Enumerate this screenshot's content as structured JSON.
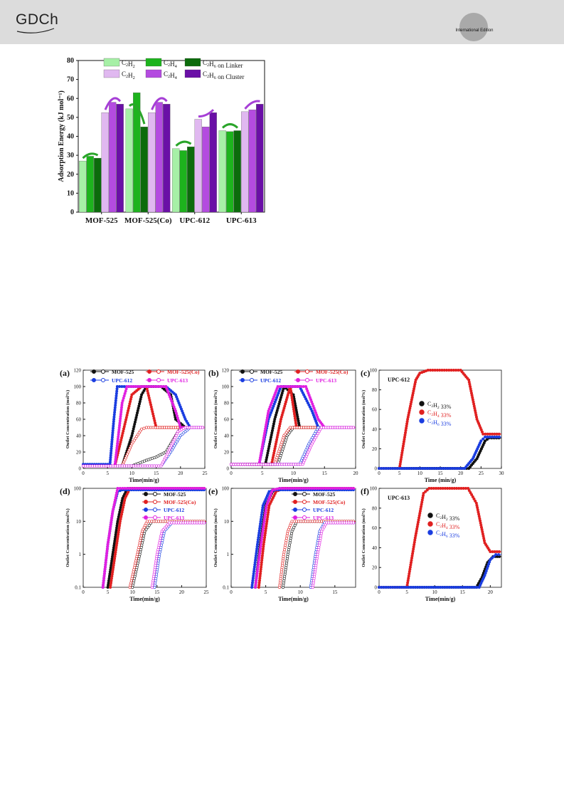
{
  "header": {
    "logo_text": "GDCh",
    "edition_text": "International Edition",
    "colors": {
      "band": "#dcdcdc",
      "badge": "#a9a9a9"
    }
  },
  "top_figure": {
    "ylabel": "Adsorption Energy (kJ mol⁻¹)",
    "chart_data": {
      "type": "bar",
      "categories": [
        "MOF-525",
        "MOF-525(Co)",
        "UPC-612",
        "UPC-613"
      ],
      "ylim": [
        0,
        80
      ],
      "yticks": [
        0,
        10,
        20,
        30,
        40,
        50,
        60,
        70,
        80
      ],
      "ylabel": "Adsorption Energy (kJ mol⁻¹)",
      "legend_position": "top",
      "series": [
        {
          "name": "C2H2",
          "color": "#a6f0a6",
          "values": [
            27,
            54.5,
            33.5,
            43
          ]
        },
        {
          "name": "C2H4",
          "color": "#1db31d",
          "values": [
            29.5,
            63,
            32.5,
            42.5
          ]
        },
        {
          "name": "C2H6 on Linker",
          "color": "#0c6b0c",
          "values": [
            28.5,
            45,
            34.5,
            43
          ]
        },
        {
          "name": "C2H2",
          "color": "#e0b8f0",
          "values": [
            52.5,
            52.5,
            49,
            53
          ]
        },
        {
          "name": "C2H4",
          "color": "#b44be0",
          "values": [
            58,
            58,
            45,
            54
          ]
        },
        {
          "name": "C2H6 on Cluster",
          "color": "#6a0fa6",
          "values": [
            57,
            57,
            52.5,
            57
          ]
        }
      ]
    }
  },
  "breakthrough": {
    "panel_labels": [
      "(a)",
      "(b)",
      "(c)",
      "(d)",
      "(e)",
      "(f)"
    ],
    "ylabel_lin": "Outlet Concentration (mol%)",
    "xlabel_a": "Time(min/g)",
    "xlabel_c": "Time (min/g)",
    "xlabel_f": "Time(min/g)",
    "legend_mof": [
      "MOF-525",
      "MOF-525(Co)",
      "UPC-612",
      "UPC-613"
    ],
    "legend_gas": [
      "C2H2 33%",
      "C2H4 33%",
      "C2H6 33%"
    ],
    "c_title": "UPC-612",
    "f_title": "UPC-613",
    "colors": {
      "MOF-525": "#111111",
      "MOF-525(Co)": "#e02020",
      "UPC-612": "#1a3de0",
      "UPC-613": "#e020e0"
    },
    "chart_data": [
      {
        "type": "line",
        "panel": "(a)",
        "xlim": [
          0,
          25
        ],
        "ylim": [
          0,
          120
        ],
        "xticks": [
          0,
          5,
          10,
          15,
          20,
          25
        ],
        "yticks": [
          0,
          20,
          40,
          60,
          80,
          100,
          120
        ],
        "series": [
          {
            "name": "MOF-525",
            "gas": "C2H4",
            "x": [
              0,
              8,
              10,
              12,
              13,
              16,
              18,
              19,
              21,
              25
            ],
            "y": [
              3,
              3,
              40,
              90,
              100,
              100,
              90,
              60,
              50,
              50
            ]
          },
          {
            "name": "MOF-525",
            "gas": "C2H6",
            "x": [
              0,
              10,
              13,
              15,
              17,
              19,
              20,
              25
            ],
            "y": [
              3,
              3,
              10,
              14,
              20,
              40,
              50,
              50
            ]
          },
          {
            "name": "MOF-525(Co)",
            "gas": "C2H4",
            "x": [
              0,
              6.5,
              8,
              10,
              12,
              13,
              15,
              25
            ],
            "y": [
              3,
              3,
              40,
              90,
              100,
              100,
              50,
              50
            ]
          },
          {
            "name": "MOF-525(Co)",
            "gas": "C2H6",
            "x": [
              0,
              8,
              10,
              12,
              13,
              25
            ],
            "y": [
              3,
              3,
              30,
              48,
              50,
              50
            ]
          },
          {
            "name": "UPC-612",
            "gas": "C2H4",
            "x": [
              0,
              5.5,
              6.3,
              7,
              17,
              19,
              21,
              22,
              25
            ],
            "y": [
              5,
              5,
              60,
              100,
              100,
              90,
              60,
              50,
              50
            ]
          },
          {
            "name": "UPC-612",
            "gas": "C2H6",
            "x": [
              0,
              16,
              18,
              20,
              22,
              25
            ],
            "y": [
              3,
              3,
              20,
              40,
              50,
              50
            ]
          },
          {
            "name": "UPC-613",
            "gas": "C2H4",
            "x": [
              0,
              6.5,
              8,
              9,
              17,
              19,
              20,
              25
            ],
            "y": [
              3,
              3,
              80,
              100,
              100,
              70,
              50,
              50
            ]
          },
          {
            "name": "UPC-613",
            "gas": "C2H6",
            "x": [
              0,
              16,
              17.5,
              19.5,
              21,
              25
            ],
            "y": [
              3,
              3,
              20,
              45,
              50,
              50
            ]
          }
        ]
      },
      {
        "type": "line",
        "panel": "(b)",
        "xlim": [
          0,
          20
        ],
        "ylim": [
          0,
          120
        ],
        "xticks": [
          0,
          5,
          10,
          15,
          20
        ],
        "yticks": [
          0,
          20,
          40,
          60,
          80,
          100,
          120
        ],
        "series": [
          {
            "name": "MOF-525",
            "gas": "C2H4",
            "x": [
              0,
              5.5,
              7,
              8.5,
              10,
              11,
              20
            ],
            "y": [
              5,
              5,
              60,
              100,
              90,
              50,
              50
            ]
          },
          {
            "name": "MOF-525",
            "gas": "C2H6",
            "x": [
              0,
              7.5,
              9,
              10,
              20
            ],
            "y": [
              5,
              5,
              40,
              50,
              50
            ]
          },
          {
            "name": "MOF-525(Co)",
            "gas": "C2H4",
            "x": [
              0,
              6.5,
              8,
              9.5,
              10.5,
              20
            ],
            "y": [
              5,
              5,
              60,
              100,
              50,
              50
            ]
          },
          {
            "name": "MOF-525(Co)",
            "gas": "C2H6",
            "x": [
              0,
              7,
              8.5,
              9.5,
              20
            ],
            "y": [
              5,
              5,
              40,
              50,
              50
            ]
          },
          {
            "name": "UPC-612",
            "gas": "C2H4",
            "x": [
              0,
              4.5,
              6,
              8,
              11,
              13,
              14,
              20
            ],
            "y": [
              5,
              5,
              60,
              100,
              100,
              70,
              50,
              50
            ]
          },
          {
            "name": "UPC-612",
            "gas": "C2H6",
            "x": [
              0,
              11,
              12.5,
              14,
              20
            ],
            "y": [
              5,
              5,
              30,
              50,
              50
            ]
          },
          {
            "name": "UPC-613",
            "gas": "C2H4",
            "x": [
              0,
              4.5,
              6,
              7.5,
              12,
              14,
              15,
              20
            ],
            "y": [
              5,
              5,
              70,
              100,
              100,
              60,
              50,
              50
            ]
          },
          {
            "name": "UPC-613",
            "gas": "C2H6",
            "x": [
              0,
              11.5,
              13,
              14.5,
              20
            ],
            "y": [
              5,
              5,
              30,
              50,
              50
            ]
          }
        ]
      },
      {
        "type": "line",
        "panel": "(c)",
        "title": "UPC-612",
        "xlim": [
          0,
          30
        ],
        "ylim": [
          0,
          100
        ],
        "xticks": [
          0,
          5,
          10,
          15,
          20,
          25,
          30
        ],
        "yticks": [
          0,
          20,
          40,
          60,
          80,
          100
        ],
        "series": [
          {
            "name": "C2H2 33%",
            "x": [
              0,
              22,
              24,
              26,
              27,
              30
            ],
            "y": [
              0,
              0,
              10,
              28,
              31,
              31
            ]
          },
          {
            "name": "C2H4 33%",
            "x": [
              0,
              5,
              7,
              9,
              10,
              12,
              20,
              22,
              24,
              25.5,
              30
            ],
            "y": [
              0,
              0,
              50,
              90,
              97,
              100,
              100,
              90,
              50,
              35,
              35
            ]
          },
          {
            "name": "C2H6 33%",
            "x": [
              0,
              21,
              23,
              25,
              26,
              30
            ],
            "y": [
              0,
              0,
              10,
              28,
              32,
              32
            ]
          }
        ]
      },
      {
        "type": "line",
        "panel": "(d)",
        "yscale": "log",
        "xlim": [
          0,
          25
        ],
        "ylim": [
          0.1,
          100
        ],
        "xticks": [
          0,
          5,
          10,
          15,
          20,
          25
        ],
        "yticks": [
          0.1,
          1,
          10,
          100
        ],
        "xlabel": "Time(min/g)",
        "series": [
          {
            "name": "MOF-525",
            "x": [
              5,
              6,
              7,
              8,
              9,
              25
            ],
            "y": [
              0.1,
              1,
              10,
              50,
              100,
              100
            ]
          },
          {
            "name": "MOF-525",
            "gas": "C2H6",
            "x": [
              10,
              11.5,
              12.5,
              14,
              25
            ],
            "y": [
              0.1,
              1,
              5,
              10,
              10
            ]
          },
          {
            "name": "MOF-525(Co)",
            "x": [
              5.5,
              6.5,
              7.5,
              8.5,
              9.5,
              25
            ],
            "y": [
              0.1,
              1,
              10,
              50,
              100,
              100
            ]
          },
          {
            "name": "MOF-525(Co)",
            "gas": "C2H6",
            "x": [
              9.5,
              11,
              12,
              13,
              25
            ],
            "y": [
              0.1,
              1,
              5,
              10,
              10
            ]
          },
          {
            "name": "UPC-612",
            "x": [
              4,
              5,
              6,
              7,
              8,
              25
            ],
            "y": [
              0.1,
              2,
              20,
              80,
              90,
              90
            ]
          },
          {
            "name": "UPC-612",
            "gas": "C2H6",
            "x": [
              14.5,
              15.5,
              16.5,
              18,
              25
            ],
            "y": [
              0.1,
              1,
              5,
              9,
              9
            ]
          },
          {
            "name": "UPC-613",
            "x": [
              4,
              5,
              6,
              7,
              8,
              25
            ],
            "y": [
              0.1,
              2,
              20,
              100,
              100,
              100
            ]
          },
          {
            "name": "UPC-613",
            "gas": "C2H6",
            "x": [
              14,
              15,
              16,
              17.5,
              25
            ],
            "y": [
              0.1,
              1,
              5,
              9,
              9
            ]
          }
        ]
      },
      {
        "type": "line",
        "panel": "(e)",
        "yscale": "log",
        "xlim": [
          0,
          18
        ],
        "ylim": [
          0.1,
          100
        ],
        "xticks": [
          0,
          5,
          10,
          15
        ],
        "yticks": [
          0.1,
          1,
          10,
          100
        ],
        "xlabel": "Time(min/g)",
        "series": [
          {
            "name": "MOF-525",
            "x": [
              3.5,
              4.2,
              5,
              6,
              7,
              18
            ],
            "y": [
              0.1,
              2,
              30,
              80,
              100,
              100
            ]
          },
          {
            "name": "MOF-525",
            "gas": "C2H6",
            "x": [
              7.5,
              8.2,
              8.8,
              9.5,
              18
            ],
            "y": [
              0.1,
              1,
              5,
              10,
              10
            ]
          },
          {
            "name": "MOF-525(Co)",
            "x": [
              4,
              4.7,
              5.5,
              6.5,
              7.5,
              18
            ],
            "y": [
              0.1,
              2,
              30,
              80,
              100,
              100
            ]
          },
          {
            "name": "MOF-525(Co)",
            "gas": "C2H6",
            "x": [
              7,
              7.6,
              8.2,
              8.8,
              18
            ],
            "y": [
              0.1,
              1,
              5,
              10,
              10
            ]
          },
          {
            "name": "UPC-612",
            "x": [
              3,
              3.8,
              4.6,
              5.5,
              6.5,
              18
            ],
            "y": [
              0.1,
              2,
              30,
              80,
              90,
              90
            ]
          },
          {
            "name": "UPC-612",
            "gas": "C2H6",
            "x": [
              11.5,
              12.2,
              12.8,
              13.5,
              18
            ],
            "y": [
              0.1,
              1,
              5,
              9,
              9
            ]
          },
          {
            "name": "UPC-613",
            "x": [
              3.5,
              4.3,
              5.1,
              6,
              7,
              18
            ],
            "y": [
              0.1,
              2,
              30,
              90,
              100,
              100
            ]
          },
          {
            "name": "UPC-613",
            "gas": "C2H6",
            "x": [
              11.8,
              12.5,
              13.1,
              13.8,
              18
            ],
            "y": [
              0.1,
              1,
              5,
              9,
              9
            ]
          }
        ]
      },
      {
        "type": "line",
        "panel": "(f)",
        "title": "UPC-613",
        "xlim": [
          0,
          22
        ],
        "ylim": [
          0,
          100
        ],
        "xticks": [
          0,
          5,
          10,
          15,
          20
        ],
        "yticks": [
          0,
          20,
          40,
          60,
          80,
          100
        ],
        "xlabel": "Time(min/g)",
        "series": [
          {
            "name": "C2H2 33%",
            "x": [
              0,
              17.5,
              18.5,
              19.5,
              20.5,
              22
            ],
            "y": [
              0,
              0,
              10,
              25,
              31,
              31
            ]
          },
          {
            "name": "C2H4 33%",
            "x": [
              0,
              5,
              6.5,
              8,
              9,
              16,
              17.5,
              19,
              20,
              22
            ],
            "y": [
              0,
              0,
              50,
              95,
              100,
              100,
              85,
              45,
              36,
              36
            ]
          },
          {
            "name": "C2H6 33%",
            "x": [
              0,
              18,
              19,
              20,
              21,
              22
            ],
            "y": [
              0,
              0,
              12,
              28,
              33,
              33
            ]
          }
        ]
      }
    ]
  }
}
